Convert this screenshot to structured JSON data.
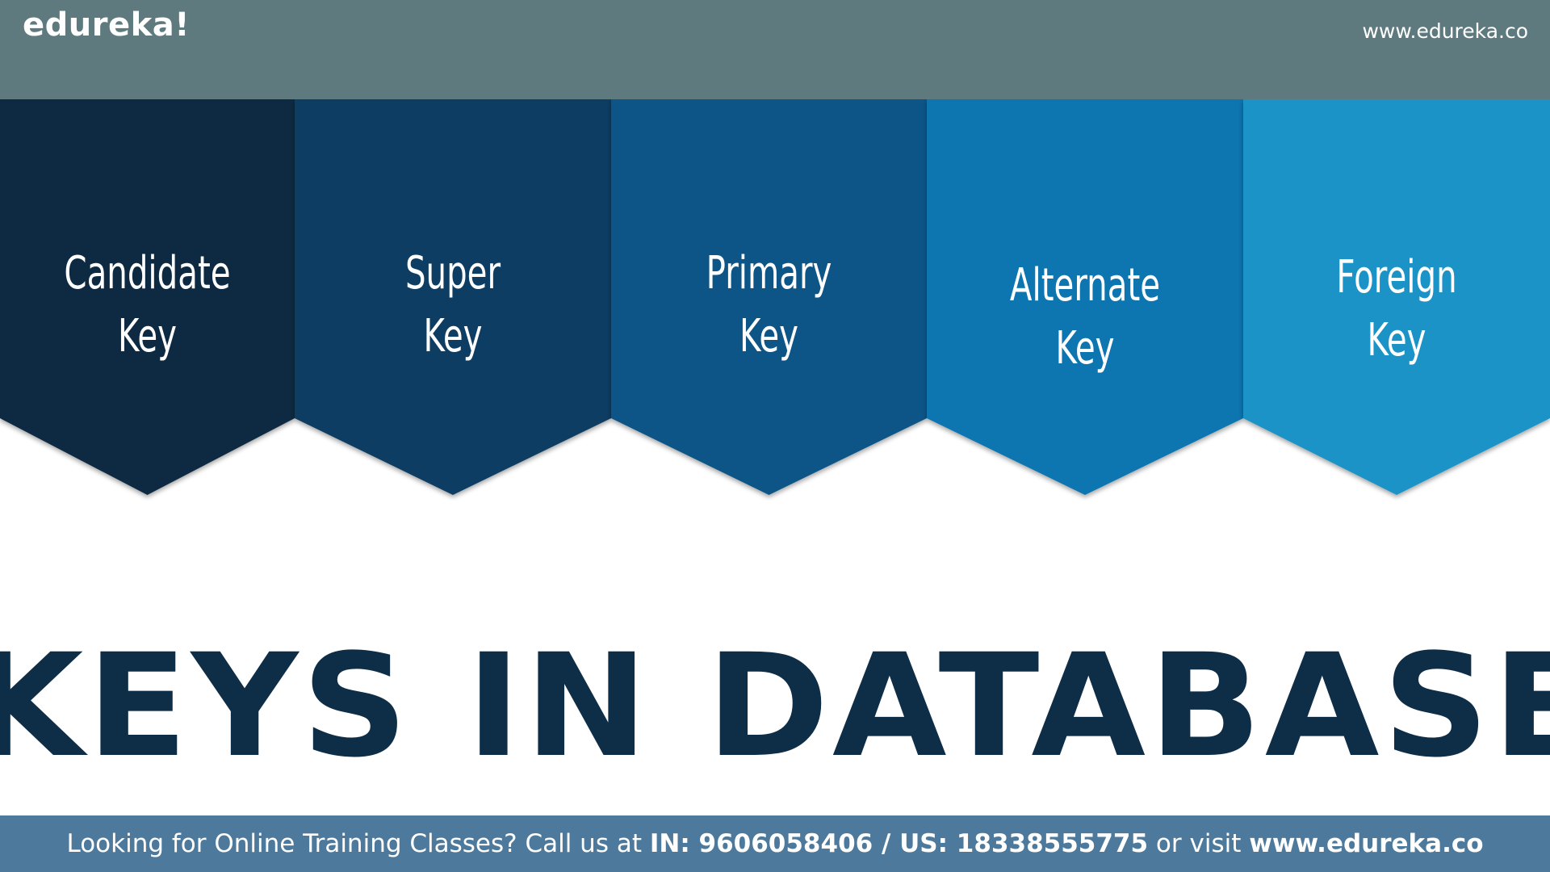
{
  "header": {
    "brand": "edureka!",
    "url": "www.edureka.co"
  },
  "keys": [
    {
      "line1": "Candidate",
      "line2": "Key",
      "color": "#0c2942"
    },
    {
      "line1": "Super",
      "line2": "Key",
      "color": "#093d62"
    },
    {
      "line1": "Primary",
      "line2": "Key",
      "color": "#085587"
    },
    {
      "line1": "Alternate",
      "line2": "Key",
      "color": "#1075b0"
    },
    {
      "line1": "Foreign",
      "line2": "Key",
      "color": "#1a93c6"
    }
  ],
  "title": "KEYS IN DATABASE",
  "footer": {
    "prefix": "Looking for Online Training Classes? Call us at ",
    "phones": "IN: 9606058406 / US: 18338555775",
    "middle": " or visit ",
    "url": "www.edureka.co"
  },
  "colors": {
    "header_bg": "#5f7a7e",
    "footer_bg": "#4d7a9c",
    "title": "#0e2e48"
  }
}
